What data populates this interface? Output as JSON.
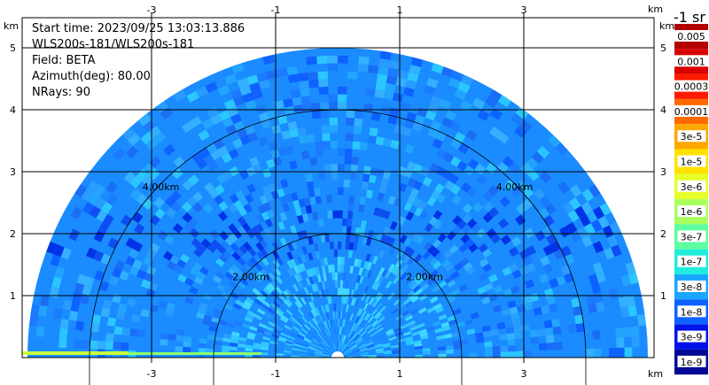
{
  "info": {
    "start_time": "Start time: 2023/09/25 13:03:13.886",
    "instrument": "WLS200s-181/WLS200s-181",
    "field": "Field: BETA",
    "azimuth": "Azimuth(deg): 80.00",
    "nrays": "NRays: 90"
  },
  "colorbar": {
    "unit_label": "-1 sr",
    "labels": [
      "0.005",
      "0.001",
      "0.0003",
      "0.0001",
      "3e-5",
      "1e-5",
      "3e-6",
      "1e-6",
      "3e-7",
      "1e-7",
      "3e-8",
      "1e-8",
      "3e-9",
      "1e-9"
    ],
    "colors": [
      "#b40000",
      "#d80000",
      "#ff1a00",
      "#ff6a00",
      "#ffa800",
      "#ffe200",
      "#e6ff2a",
      "#a8ff5e",
      "#5effa0",
      "#21ecdc",
      "#1aa6ff",
      "#0e62ff",
      "#0012e8",
      "#000a96"
    ]
  },
  "chart_data": {
    "type": "heatmap",
    "title": "",
    "plot": "RHI polar scan (range-height)",
    "x_unit": "km",
    "y_unit": "km",
    "xlim": [
      -4.4,
      4.1
    ],
    "ylim": [
      0,
      5.9
    ],
    "x_ticks": [
      -3,
      -1,
      1,
      3
    ],
    "y_ticks": [
      1,
      2,
      3,
      4,
      5
    ],
    "range_rings_km": [
      2,
      4
    ],
    "range_ring_labels": [
      "2.00km",
      "2.00km",
      "4.00km",
      "4.00km"
    ],
    "max_range_km": 5.0,
    "grid": true,
    "field": "BETA",
    "nrays": 90,
    "scale": "log",
    "dominant_value_range": [
      "3e-8",
      "1e-7"
    ]
  }
}
